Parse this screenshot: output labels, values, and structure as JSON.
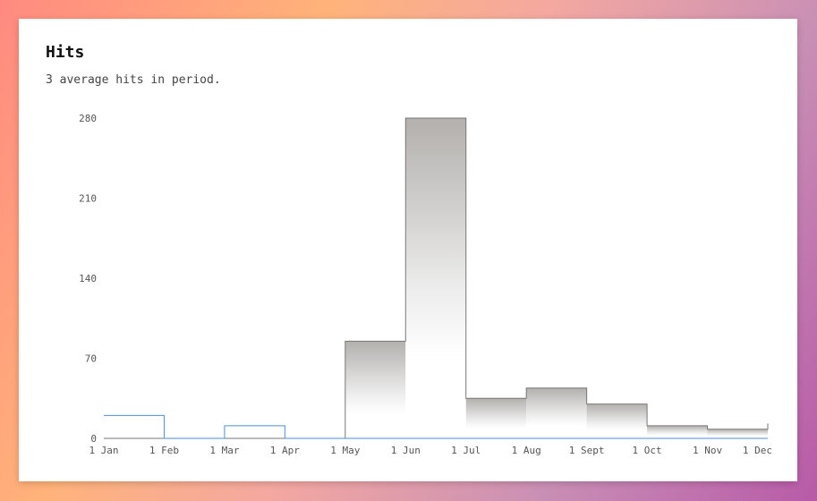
{
  "card": {
    "title": "Hits",
    "subtitle": "3 average hits in period."
  },
  "chart_data": {
    "type": "area",
    "categories": [
      "Jan",
      "Feb",
      "Mar",
      "Apr",
      "May",
      "Jun",
      "Jul",
      "Aug",
      "Sep",
      "Oct",
      "Nov",
      "Dec"
    ],
    "x_tick_labels": [
      "1 Jan",
      "1 Feb",
      "1 Mar",
      "1 Apr",
      "1 May",
      "1 Jun",
      "1 Jul",
      "1 Aug",
      "1 Sept",
      "1 Oct",
      "1 Nov",
      "1 Dec"
    ],
    "y_ticks": [
      0,
      70,
      140,
      210,
      280
    ],
    "ylim": [
      0,
      280
    ],
    "series": [
      {
        "values": [
          0,
          0,
          0,
          0,
          85,
          280,
          35,
          44,
          30,
          11,
          8,
          13
        ],
        "color": "#777777",
        "fill": "gradient-gray"
      },
      {
        "values": [
          20,
          0,
          11,
          0,
          0,
          0,
          0,
          0,
          0,
          0,
          0,
          0
        ],
        "color": "#4a90d9"
      }
    ],
    "title": "",
    "xlabel": "",
    "ylabel": ""
  }
}
